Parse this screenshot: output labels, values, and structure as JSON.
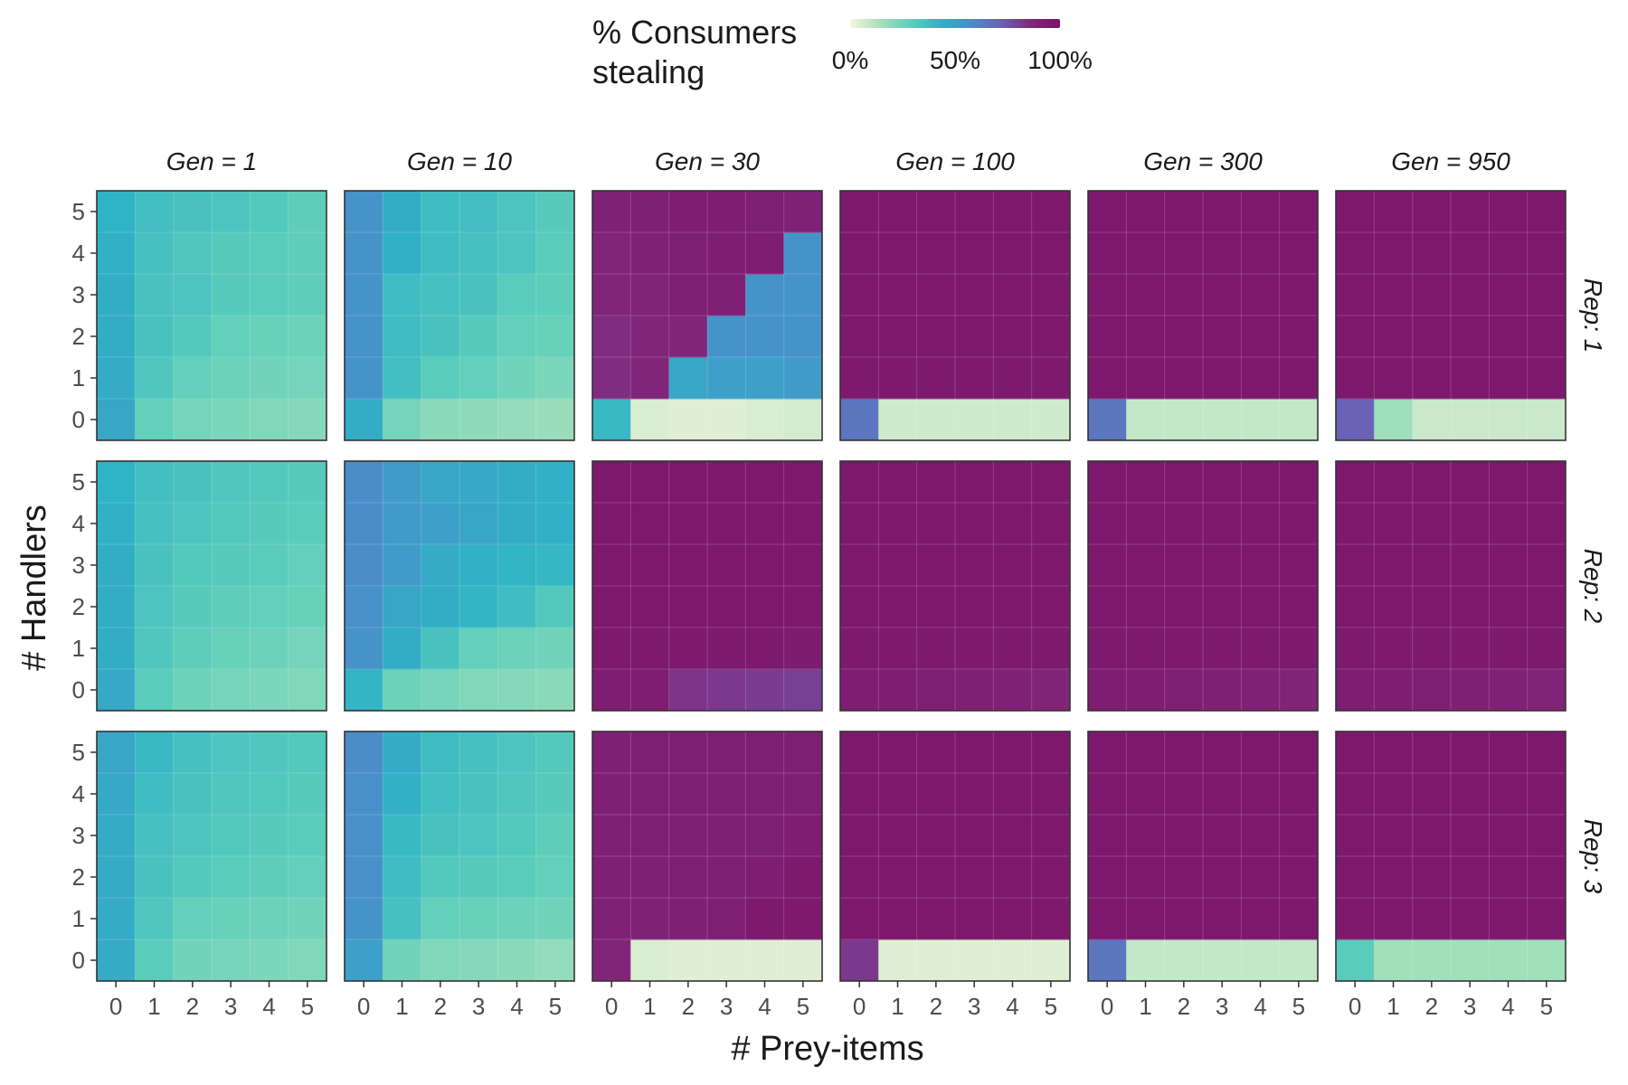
{
  "chart_data": {
    "type": "heatmap",
    "xlabel": "# Prey-items",
    "ylabel": "# Handlers",
    "x_ticks": [
      "0",
      "1",
      "2",
      "3",
      "4",
      "5"
    ],
    "y_ticks": [
      "0",
      "1",
      "2",
      "3",
      "4",
      "5"
    ],
    "legend": {
      "title": "% Consumers stealing",
      "title_lines": [
        "% Consumers",
        "stealing"
      ],
      "labels": [
        "0%",
        "50%",
        "100%"
      ],
      "position": "top",
      "colors": [
        "#f5f5dc",
        "#a6e0bb",
        "#5fcfba",
        "#2fb3c6",
        "#4a8dc9",
        "#6a63b8",
        "#81297e",
        "#7b1266"
      ]
    },
    "columns": [
      "Gen = 1",
      "Gen = 10",
      "Gen = 30",
      "Gen = 100",
      "Gen = 300",
      "Gen = 950"
    ],
    "rows": [
      "Rep: 1",
      "Rep: 2",
      "Rep: 3"
    ],
    "panel_note": "values[handlers 0..5][prey-items 0..5], percent consumers stealing",
    "panels": [
      [
        {
          "gen": "Gen = 1",
          "rep": "Rep: 1",
          "values": [
            [
              48,
              28,
              24,
              23,
              22,
              21
            ],
            [
              46,
              33,
              28,
              26,
              25,
              24
            ],
            [
              45,
              35,
              32,
              28,
              27,
              26
            ],
            [
              45,
              35,
              34,
              31,
              30,
              29
            ],
            [
              44,
              36,
              33,
              31,
              30,
              29
            ],
            [
              43,
              37,
              35,
              34,
              32,
              29
            ]
          ]
        },
        {
          "gen": "Gen = 10",
          "rep": "Rep: 1",
          "values": [
            [
              45,
              24,
              20,
              19,
              18,
              17
            ],
            [
              55,
              37,
              30,
              28,
              25,
              23
            ],
            [
              55,
              38,
              35,
              31,
              28,
              27
            ],
            [
              55,
              38,
              36,
              35,
              30,
              29
            ],
            [
              55,
              44,
              38,
              36,
              34,
              30
            ],
            [
              55,
              45,
              38,
              37,
              34,
              31
            ]
          ]
        },
        {
          "gen": "Gen = 30",
          "rep": "Rep: 1",
          "values": [
            [
              40,
              5,
              4,
              4,
              5,
              6
            ],
            [
              85,
              88,
              48,
              50,
              50,
              52
            ],
            [
              85,
              88,
              88,
              55,
              55,
              55
            ],
            [
              88,
              89,
              92,
              92,
              55,
              55
            ],
            [
              88,
              90,
              92,
              93,
              93,
              55
            ],
            [
              90,
              91,
              93,
              93,
              92,
              90
            ]
          ]
        },
        {
          "gen": "Gen = 100",
          "rep": "Rep: 1",
          "values": [
            [
              65,
              7,
              7,
              7,
              7,
              7
            ],
            [
              95,
              95,
              95,
              95,
              95,
              95
            ],
            [
              96,
              96,
              96,
              96,
              96,
              96
            ],
            [
              96,
              96,
              96,
              96,
              96,
              96
            ],
            [
              96,
              96,
              96,
              96,
              96,
              96
            ],
            [
              96,
              96,
              96,
              96,
              96,
              96
            ]
          ]
        },
        {
          "gen": "Gen = 300",
          "rep": "Rep: 1",
          "values": [
            [
              65,
              9,
              9,
              9,
              9,
              9
            ],
            [
              96,
              96,
              96,
              96,
              96,
              96
            ],
            [
              96,
              96,
              96,
              96,
              96,
              96
            ],
            [
              96,
              96,
              96,
              96,
              96,
              96
            ],
            [
              96,
              96,
              96,
              96,
              96,
              96
            ],
            [
              96,
              96,
              96,
              96,
              96,
              96
            ]
          ]
        },
        {
          "gen": "Gen = 950",
          "rep": "Rep: 1",
          "values": [
            [
              72,
              16,
              8,
              8,
              8,
              8
            ],
            [
              96,
              96,
              96,
              96,
              96,
              96
            ],
            [
              96,
              96,
              96,
              96,
              96,
              96
            ],
            [
              96,
              96,
              96,
              96,
              96,
              96
            ],
            [
              96,
              96,
              96,
              96,
              96,
              96
            ],
            [
              96,
              96,
              96,
              96,
              96,
              96
            ]
          ]
        }
      ],
      [
        {
          "gen": "Gen = 1",
          "rep": "Rep: 2",
          "values": [
            [
              47,
              30,
              26,
              24,
              23,
              22
            ],
            [
              45,
              33,
              29,
              27,
              26,
              24
            ],
            [
              45,
              34,
              31,
              29,
              28,
              27
            ],
            [
              45,
              35,
              32,
              31,
              30,
              28
            ],
            [
              44,
              36,
              34,
              32,
              31,
              30
            ],
            [
              43,
              37,
              35,
              33,
              32,
              31
            ]
          ]
        },
        {
          "gen": "Gen = 10",
          "rep": "Rep: 2",
          "values": [
            [
              42,
              26,
              24,
              22,
              21,
              20
            ],
            [
              55,
              45,
              35,
              28,
              26,
              25
            ],
            [
              56,
              48,
              45,
              42,
              38,
              32
            ],
            [
              57,
              52,
              46,
              44,
              42,
              41
            ],
            [
              57,
              52,
              50,
              48,
              45,
              44
            ],
            [
              57,
              52,
              48,
              47,
              45,
              44
            ]
          ]
        },
        {
          "gen": "Gen = 30",
          "rep": "Rep: 2",
          "values": [
            [
              93,
              93,
              83,
              82,
              81,
              80
            ],
            [
              95,
              95,
              95,
              95,
              95,
              94
            ],
            [
              96,
              96,
              96,
              96,
              96,
              96
            ],
            [
              96,
              96,
              96,
              96,
              96,
              96
            ],
            [
              96,
              96,
              96,
              96,
              96,
              96
            ],
            [
              96,
              96,
              96,
              96,
              96,
              96
            ]
          ]
        },
        {
          "gen": "Gen = 100",
          "rep": "Rep: 2",
          "values": [
            [
              93,
              93,
              92,
              91,
              90,
              89
            ],
            [
              95,
              95,
              95,
              95,
              95,
              95
            ],
            [
              96,
              96,
              96,
              96,
              96,
              96
            ],
            [
              96,
              96,
              96,
              96,
              96,
              96
            ],
            [
              96,
              96,
              96,
              96,
              96,
              96
            ],
            [
              96,
              96,
              96,
              96,
              96,
              96
            ]
          ]
        },
        {
          "gen": "Gen = 300",
          "rep": "Rep: 2",
          "values": [
            [
              93,
              93,
              92,
              91,
              90,
              89
            ],
            [
              95,
              95,
              95,
              95,
              95,
              95
            ],
            [
              96,
              96,
              96,
              96,
              96,
              96
            ],
            [
              96,
              96,
              96,
              96,
              96,
              96
            ],
            [
              96,
              96,
              96,
              96,
              96,
              96
            ],
            [
              96,
              96,
              96,
              96,
              96,
              96
            ]
          ]
        },
        {
          "gen": "Gen = 950",
          "rep": "Rep: 2",
          "values": [
            [
              93,
              93,
              92,
              91,
              90,
              89
            ],
            [
              95,
              95,
              95,
              95,
              95,
              95
            ],
            [
              96,
              96,
              96,
              96,
              96,
              96
            ],
            [
              96,
              96,
              96,
              96,
              96,
              96
            ],
            [
              96,
              96,
              96,
              96,
              96,
              96
            ],
            [
              96,
              96,
              96,
              96,
              96,
              96
            ]
          ]
        }
      ],
      [
        {
          "gen": "Gen = 1",
          "rep": "Rep: 3",
          "values": [
            [
              46,
              30,
              25,
              24,
              23,
              22
            ],
            [
              46,
              33,
              28,
              27,
              26,
              25
            ],
            [
              46,
              35,
              32,
              30,
              29,
              28
            ],
            [
              46,
              36,
              34,
              32,
              31,
              30
            ],
            [
              47,
              38,
              35,
              33,
              32,
              31
            ],
            [
              48,
              40,
              36,
              34,
              33,
              32
            ]
          ]
        },
        {
          "gen": "Gen = 10",
          "rep": "Rep: 3",
          "values": [
            [
              50,
              25,
              22,
              21,
              20,
              18
            ],
            [
              55,
              36,
              28,
              27,
              26,
              25
            ],
            [
              56,
              38,
              32,
              31,
              30,
              28
            ],
            [
              56,
              40,
              35,
              34,
              32,
              29
            ],
            [
              56,
              44,
              37,
              35,
              33,
              31
            ],
            [
              57,
              46,
              38,
              36,
              34,
              32
            ]
          ]
        },
        {
          "gen": "Gen = 30",
          "rep": "Rep: 3",
          "values": [
            [
              88,
              5,
              4,
              4,
              4,
              4
            ],
            [
              90,
              90,
              91,
              92,
              95,
              95
            ],
            [
              91,
              91,
              92,
              92,
              93,
              95
            ],
            [
              91,
              92,
              92,
              92,
              92,
              93
            ],
            [
              91,
              92,
              92,
              92,
              92,
              92
            ],
            [
              91,
              92,
              92,
              92,
              92,
              92
            ]
          ]
        },
        {
          "gen": "Gen = 100",
          "rep": "Rep: 3",
          "values": [
            [
              82,
              4,
              4,
              4,
              4,
              4
            ],
            [
              96,
              96,
              96,
              96,
              96,
              96
            ],
            [
              96,
              96,
              96,
              96,
              96,
              96
            ],
            [
              96,
              96,
              96,
              96,
              96,
              96
            ],
            [
              96,
              96,
              96,
              96,
              96,
              96
            ],
            [
              96,
              96,
              96,
              96,
              96,
              96
            ]
          ]
        },
        {
          "gen": "Gen = 300",
          "rep": "Rep: 3",
          "values": [
            [
              65,
              9,
              9,
              9,
              9,
              9
            ],
            [
              96,
              96,
              96,
              96,
              96,
              96
            ],
            [
              96,
              96,
              96,
              96,
              96,
              96
            ],
            [
              96,
              96,
              96,
              96,
              96,
              96
            ],
            [
              96,
              96,
              96,
              96,
              96,
              96
            ],
            [
              96,
              96,
              96,
              96,
              96,
              96
            ]
          ]
        },
        {
          "gen": "Gen = 950",
          "rep": "Rep: 3",
          "values": [
            [
              30,
              15,
              15,
              15,
              15,
              15
            ],
            [
              96,
              96,
              96,
              96,
              96,
              96
            ],
            [
              96,
              96,
              96,
              96,
              96,
              96
            ],
            [
              96,
              96,
              96,
              96,
              96,
              96
            ],
            [
              96,
              96,
              96,
              96,
              96,
              96
            ],
            [
              96,
              96,
              96,
              96,
              96,
              96
            ]
          ]
        }
      ]
    ]
  }
}
